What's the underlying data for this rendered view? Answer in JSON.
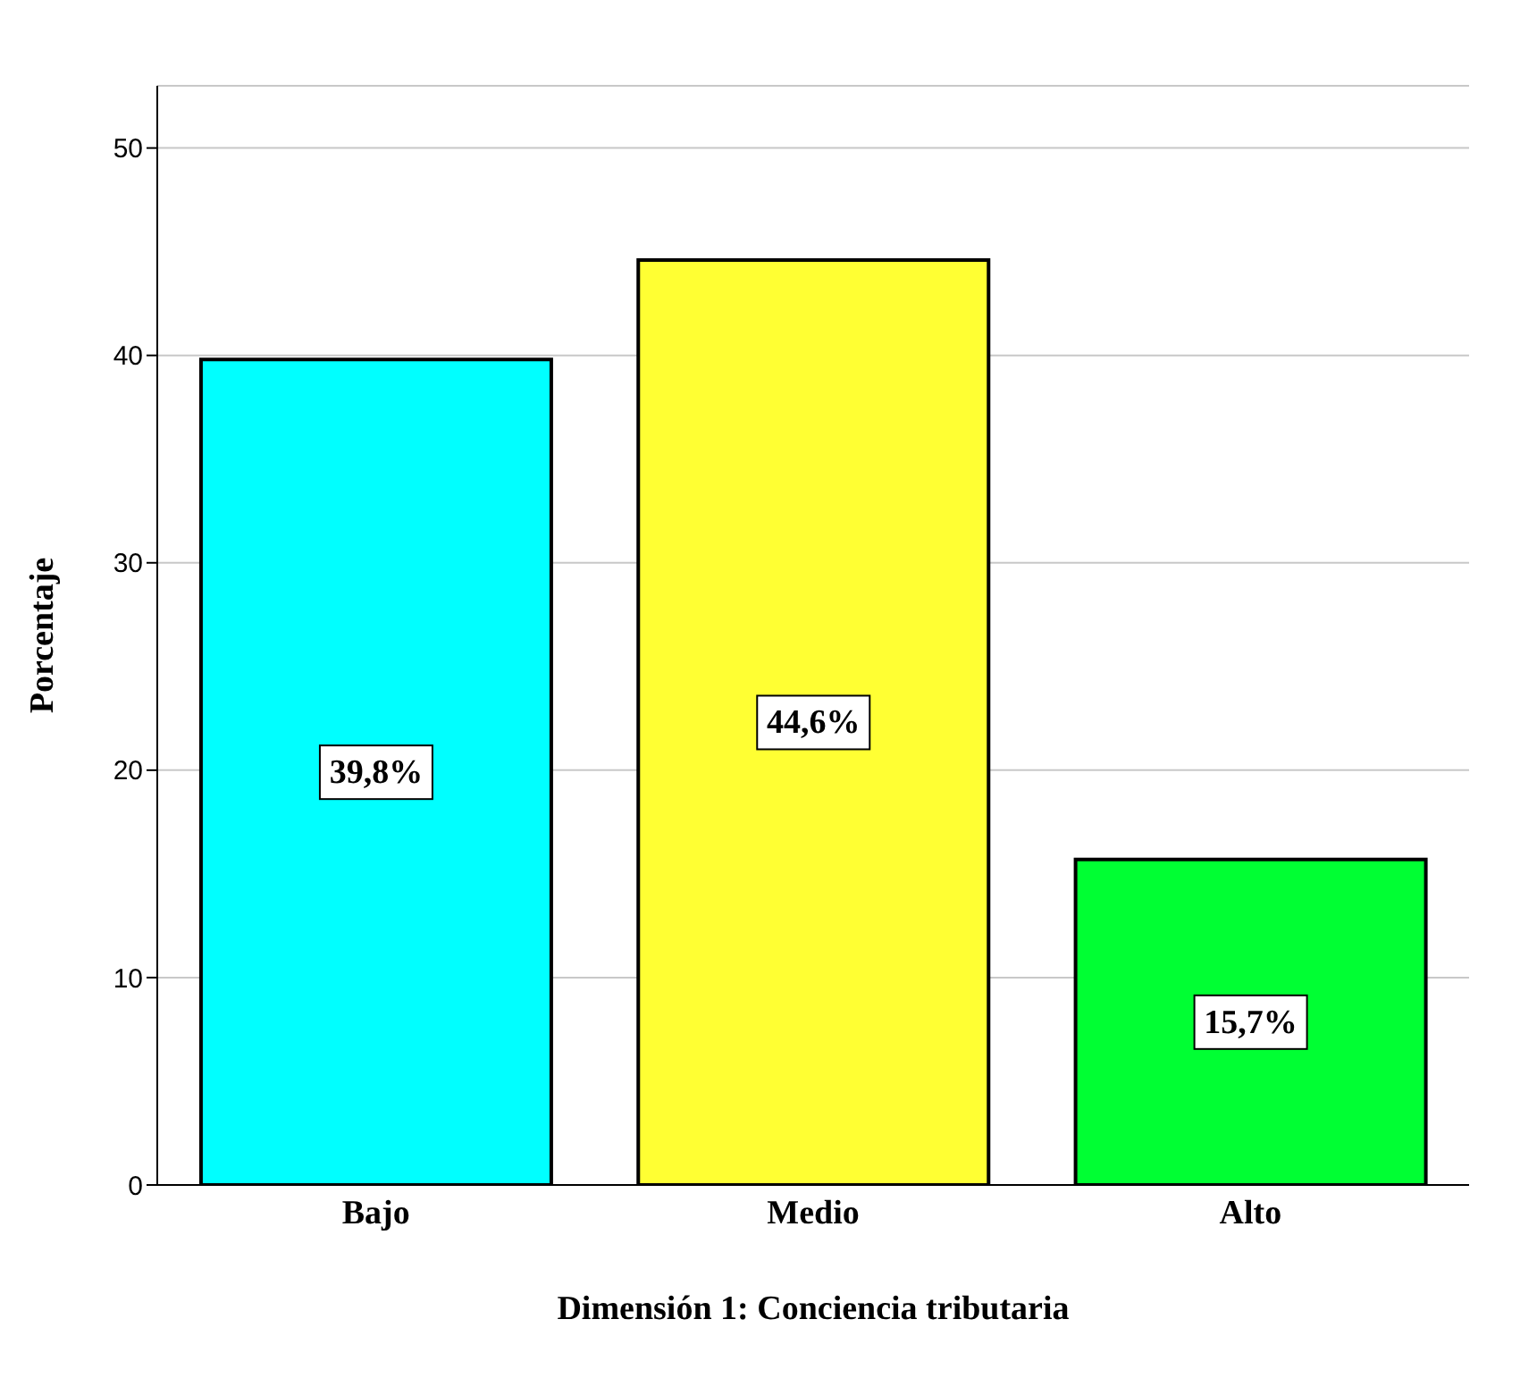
{
  "chart_data": {
    "type": "bar",
    "xlabel": "Dimensión 1: Conciencia tributaria",
    "ylabel": "Porcentaje",
    "categories": [
      "Bajo",
      "Medio",
      "Alto"
    ],
    "values": [
      39.8,
      44.6,
      15.7
    ],
    "colors": [
      "#00ffff",
      "#ffff33",
      "#00ff33"
    ],
    "value_labels": [
      "39,8%",
      "44,6%",
      "15,7%"
    ],
    "ylim": [
      0,
      53
    ],
    "yticks": [
      0,
      10,
      20,
      30,
      40,
      50
    ],
    "grid": "y"
  }
}
